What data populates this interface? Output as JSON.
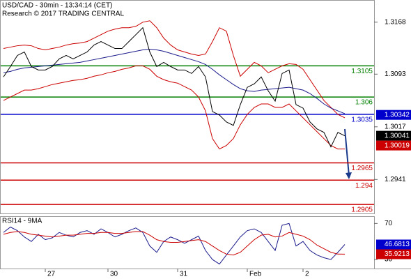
{
  "chart_data": [
    {
      "type": "line",
      "title": "USD/CAD - 30min - 13:34:14 (CET)",
      "subtitle": "Research © 2017 TRADING CENTRAL",
      "categories": [
        null,
        null,
        null,
        null,
        null,
        null,
        "27",
        null,
        null,
        null,
        null,
        null,
        null,
        null,
        null,
        "30",
        null,
        null,
        null,
        null,
        null,
        null,
        null,
        null,
        null,
        "31",
        null,
        null,
        null,
        null,
        null,
        null,
        null,
        null,
        null,
        "Feb",
        null,
        null,
        null,
        null,
        null,
        null,
        null,
        "2",
        null,
        null,
        null,
        null,
        null,
        null
      ],
      "ylim": [
        1.2893,
        1.32
      ],
      "yticks": [
        1.2941,
        1.3017,
        1.3093,
        1.3168
      ],
      "series": [
        {
          "color": "#cc0000",
          "values": [
            1.313,
            1.3132,
            1.3134,
            1.3135,
            1.3134,
            1.313,
            1.3128,
            1.313,
            1.3132,
            1.3135,
            1.3137,
            1.3138,
            1.314,
            1.3145,
            1.315,
            1.3155,
            1.3158,
            1.316,
            1.316,
            1.3162,
            1.3168,
            1.317,
            1.316,
            1.3145,
            1.3135,
            1.3128,
            1.3125,
            1.3122,
            1.312,
            1.3122,
            1.314,
            1.316,
            1.3155,
            1.312,
            1.309,
            1.31,
            1.311,
            1.3105,
            1.3095,
            1.31,
            1.3105,
            1.3108,
            1.3107,
            1.31,
            1.3085,
            1.307,
            1.3055,
            1.3045,
            1.3035,
            1.303
          ]
        },
        {
          "color": "#cc0000",
          "values": [
            1.3055,
            1.306,
            1.3065,
            1.307,
            1.307,
            1.3072,
            1.3075,
            1.3078,
            1.308,
            1.3082,
            1.3084,
            1.3085,
            1.3087,
            1.309,
            1.3092,
            1.3095,
            1.3097,
            1.31,
            1.3102,
            1.3105,
            1.3105,
            1.31,
            1.309,
            1.3085,
            1.3082,
            1.308,
            1.3075,
            1.307,
            1.306,
            1.304,
            1.3,
            1.2985,
            1.299,
            1.3,
            1.302,
            1.3035,
            1.3045,
            1.305,
            1.305,
            1.3045,
            1.3045,
            1.305,
            1.304,
            1.303,
            1.302,
            1.301,
            1.3,
            1.299,
            1.2985,
            1.2985
          ]
        },
        {
          "color": "#1a1a8c",
          "values": [
            1.3095,
            1.3097,
            1.31,
            1.3102,
            1.3103,
            1.3104,
            1.3105,
            1.3106,
            1.3107,
            1.3108,
            1.3109,
            1.311,
            1.3112,
            1.3114,
            1.3116,
            1.3118,
            1.312,
            1.3122,
            1.3124,
            1.3126,
            1.3128,
            1.3129,
            1.3128,
            1.3126,
            1.3123,
            1.312,
            1.3117,
            1.3114,
            1.3111,
            1.3107,
            1.31,
            1.3092,
            1.3085,
            1.3078,
            1.3072,
            1.3069,
            1.3068,
            1.307,
            1.3071,
            1.3072,
            1.3073,
            1.3074,
            1.3072,
            1.307,
            1.3065,
            1.3058,
            1.305,
            1.3044,
            1.304,
            1.3036
          ]
        },
        {
          "color": "#000000",
          "values": [
            1.3089,
            1.3104,
            1.312,
            1.3125,
            1.3104,
            1.3099,
            1.3099,
            1.3104,
            1.3115,
            1.312,
            1.3115,
            1.312,
            1.3125,
            1.3135,
            1.314,
            1.3135,
            1.313,
            1.313,
            1.314,
            1.315,
            1.316,
            1.3125,
            1.3104,
            1.311,
            1.3104,
            1.3099,
            1.3099,
            1.3094,
            1.3104,
            1.3089,
            1.3039,
            1.3034,
            1.3024,
            1.3019,
            1.3049,
            1.3074,
            1.3079,
            1.3089,
            1.3069,
            1.3054,
            1.3094,
            1.3099,
            1.3049,
            1.3044,
            1.3024,
            1.3014,
            1.3009,
            1.2988,
            1.3009,
            1.3004
          ]
        }
      ],
      "levels": [
        {
          "value": 1.3105,
          "color": "#008000"
        },
        {
          "value": 1.306,
          "color": "#008000"
        },
        {
          "value": 1.3035,
          "color": "#0000cc"
        },
        {
          "value": 1.2965,
          "color": "#cc0000"
        },
        {
          "value": 1.294,
          "color": "#cc0000"
        },
        {
          "value": 1.2905,
          "color": "#cc0000"
        }
      ],
      "markers": [
        {
          "value": 1.30342,
          "color": "#0000cc"
        },
        {
          "value": 1.30041,
          "color": "#000000"
        },
        {
          "value": 1.30019,
          "color": "#cc0000"
        }
      ]
    },
    {
      "type": "line",
      "title": "RSI14 - 9MA",
      "ylim": [
        20,
        78
      ],
      "yticks": [
        70,
        30
      ],
      "series": [
        {
          "color": "#1a1a8c",
          "values": [
            60,
            66,
            62,
            55,
            50,
            58,
            52,
            54,
            60,
            57,
            55,
            60,
            62,
            58,
            64,
            60,
            55,
            58,
            62,
            65,
            60,
            45,
            38,
            50,
            55,
            52,
            48,
            52,
            56,
            40,
            30,
            25,
            35,
            45,
            55,
            62,
            64,
            60,
            50,
            40,
            68,
            70,
            45,
            50,
            40,
            35,
            32,
            30,
            38,
            46.6813
          ]
        },
        {
          "color": "#cc0000",
          "values": [
            58,
            60,
            61,
            60,
            58,
            57,
            56,
            55,
            56,
            57,
            57,
            58,
            59,
            59,
            60,
            60,
            59,
            59,
            60,
            61,
            61,
            57,
            52,
            50,
            49,
            49,
            50,
            51,
            52,
            50,
            45,
            40,
            36,
            35,
            38,
            45,
            52,
            57,
            58,
            55,
            56,
            60,
            58,
            56,
            52,
            46,
            42,
            38,
            36,
            35.9213
          ]
        }
      ],
      "markers": [
        {
          "value": 46.6813,
          "color": "#0000cc"
        },
        {
          "value": 35.9213,
          "color": "#cc0000"
        }
      ]
    }
  ]
}
